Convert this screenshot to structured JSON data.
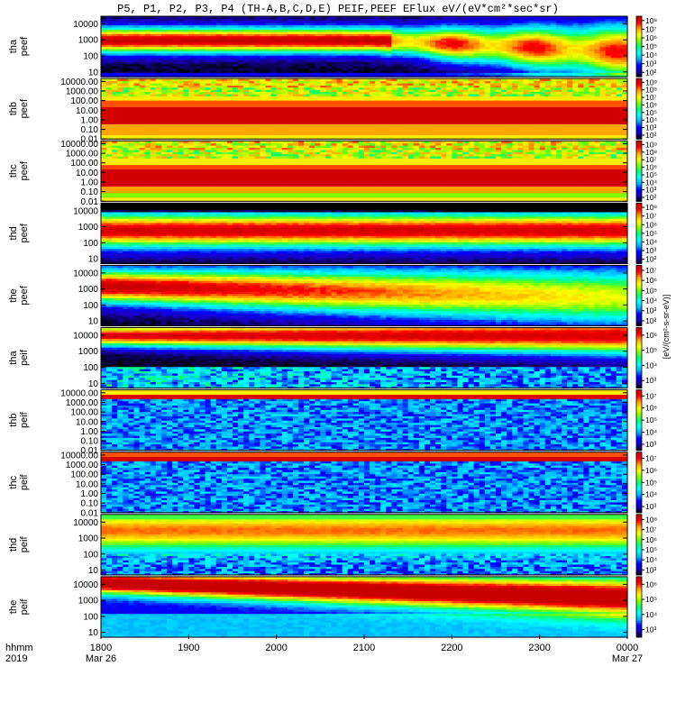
{
  "title": "P5, P1, P2, P3, P4 (TH-A,B,C,D,E) PEIF,PEEF EFlux eV/(eV*cm²*sec*sr)",
  "colors": {
    "scale": [
      "#000000",
      "#1a00c0",
      "#0000ff",
      "#00b0ff",
      "#00ffff",
      "#00ff7f",
      "#7fff00",
      "#ffff00",
      "#ffa500",
      "#ff0000",
      "#c80000"
    ]
  },
  "chart_data": {
    "type": "heatmap",
    "x_axis": {
      "row_label_1": "hhmm",
      "row_label_2": "2019",
      "ticks": [
        "1800",
        "1900",
        "2000",
        "2100",
        "2200",
        "2300",
        "0000"
      ],
      "date_labels": [
        {
          "at": "1800",
          "text": "Mar 26"
        },
        {
          "at": "0000",
          "text": "Mar 27"
        }
      ],
      "range": [
        "2019-03-26 18:00",
        "2019-03-27 00:00"
      ]
    },
    "colorbar_title": "[eV/(cm²-s-sr-eV)]",
    "panels": [
      {
        "name": "tha peef",
        "label": [
          "tha",
          "peef"
        ],
        "yticks": [
          "10",
          "100",
          "1000",
          "10000"
        ],
        "ymin": 5,
        "ymax": 30000,
        "cb_ticks": [
          "10²",
          "10³",
          "10⁴",
          "10⁵",
          "10⁶",
          "10⁷",
          "10⁸"
        ],
        "pattern": "a_peef"
      },
      {
        "name": "thb peef",
        "label": [
          "thb",
          "peef"
        ],
        "yticks": [
          "0.01",
          "0.10",
          "1.00",
          "10.00",
          "100.00",
          "1000.00",
          "10000.00"
        ],
        "ymin": 0.01,
        "ymax": 20000,
        "cb_ticks": [
          "10²",
          "10³",
          "10⁴",
          "10⁵",
          "10⁶",
          "10⁷",
          "10⁸",
          "10⁹"
        ],
        "pattern": "b_peef"
      },
      {
        "name": "thc peef",
        "label": [
          "thc",
          "peef"
        ],
        "yticks": [
          "0.01",
          "0.10",
          "1.00",
          "10.00",
          "100.00",
          "1000.00",
          "10000.00"
        ],
        "ymin": 0.01,
        "ymax": 20000,
        "cb_ticks": [
          "10²",
          "10³",
          "10⁴",
          "10⁵",
          "10⁶",
          "10⁷",
          "10⁸",
          "10⁹"
        ],
        "pattern": "c_peef"
      },
      {
        "name": "thd peef",
        "label": [
          "thd",
          "peef"
        ],
        "yticks": [
          "10",
          "100",
          "1000",
          "10000"
        ],
        "ymin": 5,
        "ymax": 30000,
        "cb_ticks": [
          "10²",
          "10³",
          "10⁴",
          "10⁵",
          "10⁶",
          "10⁷",
          "10⁸"
        ],
        "pattern": "d_peef"
      },
      {
        "name": "the peef",
        "label": [
          "the",
          "peef"
        ],
        "yticks": [
          "10",
          "100",
          "1000",
          "10000"
        ],
        "ymin": 5,
        "ymax": 30000,
        "cb_ticks": [
          "10²",
          "10³",
          "10⁴",
          "10⁵",
          "10⁶",
          "10⁷"
        ],
        "pattern": "e_peef"
      },
      {
        "name": "tha peif",
        "label": [
          "tha",
          "peif"
        ],
        "yticks": [
          "10",
          "100",
          "1000",
          "10000"
        ],
        "ymin": 5,
        "ymax": 30000,
        "cb_ticks": [
          "10³",
          "10⁴",
          "10⁵",
          "10⁶"
        ],
        "pattern": "a_peif"
      },
      {
        "name": "thb peif",
        "label": [
          "thb",
          "peif"
        ],
        "yticks": [
          "0.01",
          "0.10",
          "1.00",
          "10.00",
          "100.00",
          "1000.00",
          "10000.00"
        ],
        "ymin": 0.01,
        "ymax": 20000,
        "cb_ticks": [
          "10³",
          "10⁴",
          "10⁵",
          "10⁶",
          "10⁷"
        ],
        "pattern": "b_peif"
      },
      {
        "name": "thc peif",
        "label": [
          "thc",
          "peif"
        ],
        "yticks": [
          "0.01",
          "0.10",
          "1.00",
          "10.00",
          "100.00",
          "1000.00",
          "10000.00"
        ],
        "ymin": 0.01,
        "ymax": 20000,
        "cb_ticks": [
          "10³",
          "10⁴",
          "10⁵",
          "10⁶",
          "10⁷"
        ],
        "pattern": "c_peif"
      },
      {
        "name": "thd peif",
        "label": [
          "thd",
          "peif"
        ],
        "yticks": [
          "10",
          "100",
          "1000",
          "10000"
        ],
        "ymin": 5,
        "ymax": 30000,
        "cb_ticks": [
          "10³",
          "10⁴",
          "10⁵",
          "10⁶",
          "10⁷",
          "10⁸"
        ],
        "pattern": "d_peif"
      },
      {
        "name": "the peif",
        "label": [
          "the",
          "peif"
        ],
        "yticks": [
          "10",
          "100",
          "1000",
          "10000"
        ],
        "ymin": 5,
        "ymax": 30000,
        "cb_ticks": [
          "10³",
          "10⁴",
          "10⁵",
          "10⁶"
        ],
        "pattern": "e_peif"
      }
    ]
  }
}
